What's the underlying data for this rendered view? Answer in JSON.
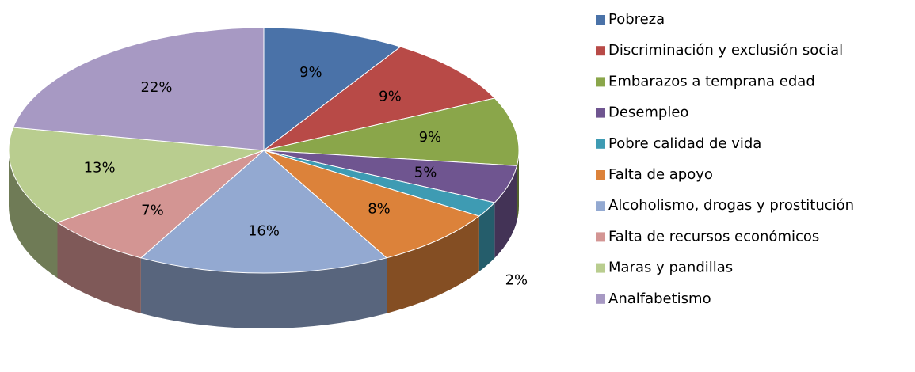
{
  "chart_data": {
    "type": "pie",
    "categories": [
      "Pobreza",
      "Discriminación y exclusión social",
      "Embarazos a temprana edad",
      "Desempleo",
      "Pobre calidad de vida",
      "Falta de apoyo",
      "Alcoholismo, drogas y prostitución",
      "Falta de recursos económicos",
      "Maras y pandillas",
      "Analfabetismo"
    ],
    "values": [
      9,
      9,
      9,
      5,
      2,
      8,
      16,
      7,
      13,
      22
    ],
    "value_labels": [
      "9%",
      "9%",
      "9%",
      "5%",
      "2%",
      "8%",
      "16%",
      "7%",
      "13%",
      "22%"
    ],
    "colors": [
      "#4a72a8",
      "#b84a47",
      "#8aa64a",
      "#6f5590",
      "#3e9bb3",
      "#dc823a",
      "#93a9d1",
      "#d39593",
      "#b9cd8f",
      "#a799c3"
    ],
    "legend": "right"
  }
}
